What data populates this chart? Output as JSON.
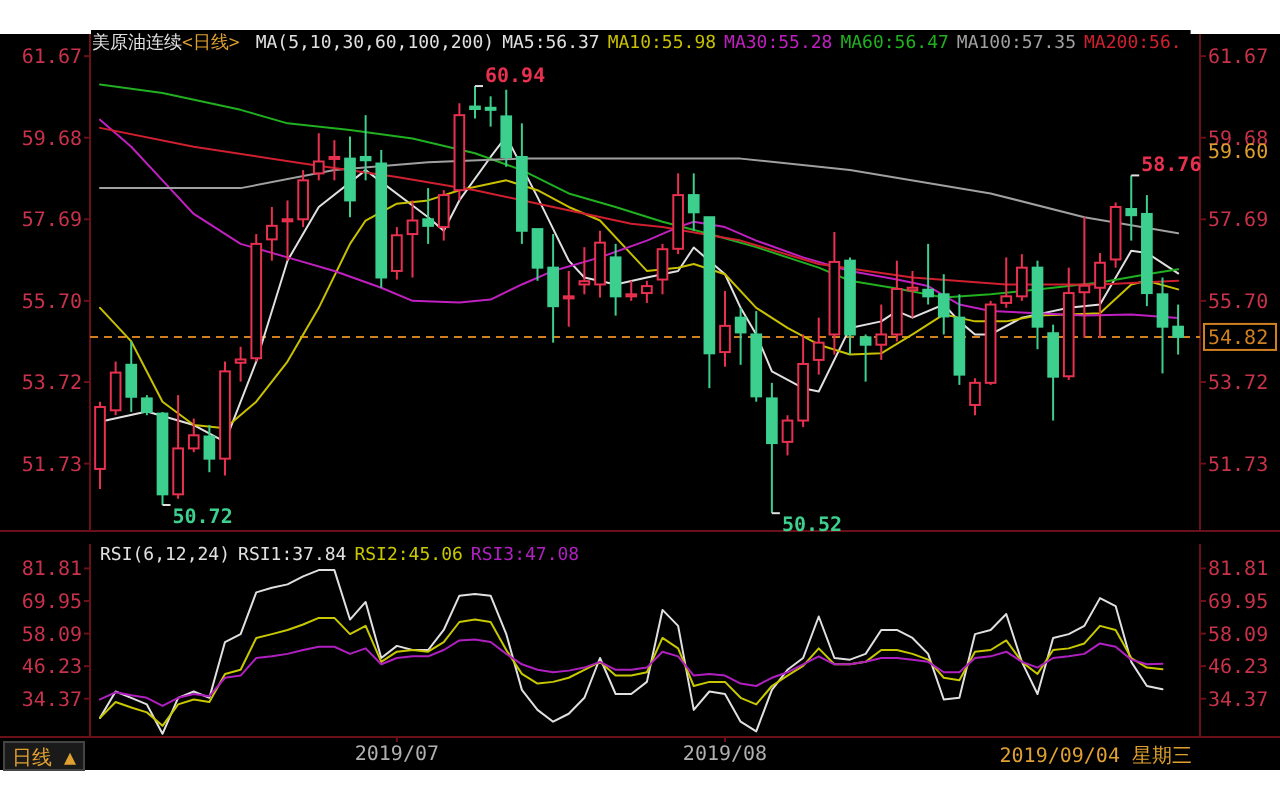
{
  "chart_data": [
    {
      "type": "candlestick",
      "title": "美原油连续",
      "subtitle": "<日线>",
      "legend_title": "MA(5,10,30,60,100,200)",
      "legend": "top right",
      "tick_labels": "y",
      "categories": [
        null,
        null,
        null,
        null,
        null,
        null,
        null,
        null,
        null,
        null,
        null,
        null,
        null,
        null,
        null,
        null,
        null,
        null,
        null,
        null,
        null,
        null,
        null,
        null,
        null,
        null,
        null,
        null,
        null,
        null,
        null,
        null,
        null,
        null,
        null,
        null,
        null,
        null,
        null,
        null,
        null,
        null,
        null,
        null,
        null,
        null,
        null,
        null,
        null,
        null,
        null,
        null,
        null,
        null,
        null,
        null,
        null,
        null,
        null,
        null,
        null,
        null,
        null,
        null,
        null,
        null,
        null,
        null,
        null,
        null
      ],
      "ylim": [
        50.11,
        62.21
      ],
      "yticks": [
        51.73,
        53.72,
        {
          "value": 55.7,
          "label": "55.70"
        },
        57.69,
        59.68,
        61.67
      ],
      "y2lim": [
        50.11,
        62.21
      ],
      "y2ticks": [
        51.73,
        53.72,
        {
          "value": 55.7,
          "label": "55.70"
        },
        57.69,
        59.68,
        61.67
      ],
      "ohlc": [
        [
          51.6,
          53.24,
          51.11,
          53.11
        ],
        [
          53.03,
          54.22,
          52.91,
          53.95
        ],
        [
          54.14,
          54.71,
          52.99,
          53.36
        ],
        [
          53.32,
          53.4,
          52.91,
          52.99
        ],
        [
          52.95,
          52.99,
          50.72,
          50.98
        ],
        [
          50.98,
          53.4,
          50.87,
          52.1
        ],
        [
          52.1,
          52.83,
          52.01,
          52.42
        ],
        [
          52.39,
          52.67,
          51.52,
          51.85
        ],
        [
          51.85,
          54.22,
          51.44,
          53.98
        ],
        [
          54.19,
          54.58,
          53.73,
          54.27
        ],
        [
          54.3,
          57.33,
          54.22,
          57.09
        ],
        [
          57.2,
          57.99,
          56.68,
          57.53
        ],
        [
          57.64,
          58.15,
          56.68,
          57.69
        ],
        [
          57.69,
          58.89,
          57.5,
          58.64
        ],
        [
          58.81,
          59.79,
          58.64,
          59.1
        ],
        [
          59.17,
          59.62,
          58.64,
          59.21
        ],
        [
          59.17,
          59.71,
          57.74,
          58.15
        ],
        [
          59.21,
          60.23,
          58.64,
          59.13
        ],
        [
          59.05,
          59.38,
          56.02,
          56.27
        ],
        [
          56.43,
          57.5,
          56.22,
          57.3
        ],
        [
          57.33,
          58.15,
          56.27,
          57.66
        ],
        [
          57.69,
          58.45,
          57.09,
          57.53
        ],
        [
          57.5,
          58.4,
          57.17,
          58.28
        ],
        [
          58.4,
          60.52,
          58.15,
          60.23
        ],
        [
          60.44,
          60.94,
          60.15,
          60.38
        ],
        [
          60.41,
          60.69,
          59.95,
          60.36
        ],
        [
          60.2,
          60.85,
          58.97,
          59.21
        ],
        [
          59.21,
          60.03,
          57.09,
          57.41
        ],
        [
          57.45,
          57.45,
          56.19,
          56.51
        ],
        [
          56.51,
          57.33,
          54.68,
          55.57
        ],
        [
          55.76,
          56.43,
          55.07,
          55.81
        ],
        [
          56.1,
          57.01,
          55.86,
          56.18
        ],
        [
          56.1,
          57.41,
          55.78,
          57.12
        ],
        [
          56.76,
          57.09,
          55.34,
          55.81
        ],
        [
          55.81,
          56.19,
          55.7,
          55.86
        ],
        [
          55.89,
          56.19,
          55.65,
          56.06
        ],
        [
          56.22,
          57.09,
          55.86,
          56.96
        ],
        [
          56.97,
          58.81,
          56.84,
          58.28
        ],
        [
          58.28,
          58.81,
          57.41,
          57.86
        ],
        [
          57.74,
          57.74,
          53.57,
          54.42
        ],
        [
          54.45,
          55.94,
          54.09,
          55.09
        ],
        [
          55.29,
          55.53,
          54.14,
          54.93
        ],
        [
          54.88,
          55.45,
          53.24,
          53.37
        ],
        [
          53.32,
          53.7,
          50.52,
          52.23
        ],
        [
          52.26,
          52.91,
          51.93,
          52.78
        ],
        [
          52.78,
          54.88,
          52.62,
          54.16
        ],
        [
          54.26,
          55.29,
          53.9,
          54.68
        ],
        [
          54.88,
          57.38,
          54.39,
          56.65
        ],
        [
          56.68,
          56.76,
          54.39,
          54.88
        ],
        [
          54.81,
          54.88,
          53.73,
          54.63
        ],
        [
          54.63,
          55.61,
          54.26,
          54.88
        ],
        [
          54.88,
          56.68,
          54.71,
          55.99
        ],
        [
          55.96,
          56.43,
          55.29,
          56.02
        ],
        [
          55.97,
          57.09,
          55.61,
          55.81
        ],
        [
          55.86,
          56.35,
          54.88,
          55.32
        ],
        [
          55.29,
          55.86,
          53.65,
          53.9
        ],
        [
          53.16,
          53.81,
          52.91,
          53.7
        ],
        [
          53.7,
          55.7,
          53.65,
          55.61
        ],
        [
          55.65,
          56.76,
          55.53,
          55.81
        ],
        [
          55.81,
          56.84,
          55.7,
          56.51
        ],
        [
          56.51,
          56.68,
          54.52,
          55.07
        ],
        [
          54.91,
          55.12,
          52.78,
          53.85
        ],
        [
          53.86,
          56.51,
          53.77,
          55.89
        ],
        [
          55.91,
          57.74,
          54.8,
          56.07
        ],
        [
          56.02,
          56.87,
          54.8,
          56.63
        ],
        [
          56.71,
          58.1,
          56.51,
          57.99
        ],
        [
          57.94,
          58.76,
          57.17,
          57.79
        ],
        [
          57.82,
          58.28,
          55.57,
          55.89
        ],
        [
          55.86,
          56.27,
          53.93,
          55.07
        ],
        [
          55.07,
          55.61,
          54.39,
          54.82
        ]
      ],
      "colors": [
        "#e8304f",
        "#e8304f",
        "#3ccf8e",
        "#3ccf8e",
        "#3ccf8e",
        "#e8304f",
        "#e8304f",
        "#3ccf8e",
        "#e8304f",
        "#e8304f",
        "#e8304f",
        "#e8304f",
        "#e8304f",
        "#e8304f",
        "#e8304f",
        "#e8304f",
        "#3ccf8e",
        "#3ccf8e",
        "#3ccf8e",
        "#e8304f",
        "#e8304f",
        "#3ccf8e",
        "#e8304f",
        "#e8304f",
        "#3ccf8e",
        "#3ccf8e",
        "#3ccf8e",
        "#3ccf8e",
        "#3ccf8e",
        "#3ccf8e",
        "#e8304f",
        "#e8304f",
        "#e8304f",
        "#3ccf8e",
        "#e8304f",
        "#e8304f",
        "#e8304f",
        "#e8304f",
        "#3ccf8e",
        "#3ccf8e",
        "#e8304f",
        "#3ccf8e",
        "#3ccf8e",
        "#3ccf8e",
        "#e8304f",
        "#e8304f",
        "#e8304f",
        "#e8304f",
        "#3ccf8e",
        "#3ccf8e",
        "#e8304f",
        "#e8304f",
        "#e8304f",
        "#3ccf8e",
        "#3ccf8e",
        "#3ccf8e",
        "#e8304f",
        "#e8304f",
        "#e8304f",
        "#e8304f",
        "#3ccf8e",
        "#3ccf8e",
        "#e8304f",
        "#e8304f",
        "#e8304f",
        "#e8304f",
        "#3ccf8e",
        "#3ccf8e",
        "#3ccf8e",
        "#3ccf8e"
      ],
      "series": [
        {
          "name": "MA5:56.37",
          "type": "line",
          "color": "#e0e0e0",
          "values": [
            52.75,
            null,
            null,
            53.0,
            null,
            null,
            52.67,
            null,
            52.26,
            null,
            54.22,
            null,
            56.68,
            null,
            57.99,
            null,
            null,
            58.89,
            null,
            null,
            null,
            57.74,
            57.41,
            58.15,
            null,
            59.21,
            59.71,
            null,
            58.23,
            null,
            56.68,
            56.27,
            null,
            56.1,
            null,
            56.27,
            null,
            56.43,
            57.0,
            null,
            56.35,
            55.53,
            54.88,
            53.98,
            null,
            53.57,
            53.49,
            null,
            55.04,
            null,
            55.2,
            55.45,
            55.29,
            null,
            55.61,
            55.2,
            54.88,
            54.88,
            null,
            55.29,
            55.37,
            null,
            55.53,
            null,
            55.61,
            null,
            56.92,
            56.87,
            null,
            56.37
          ]
        },
        {
          "name": "MA10:55.98",
          "type": "line",
          "color": "#c8c000",
          "values": [
            55.53,
            null,
            54.71,
            null,
            53.24,
            null,
            52.67,
            null,
            52.59,
            null,
            53.24,
            null,
            54.22,
            null,
            55.53,
            null,
            57.09,
            57.66,
            null,
            58.07,
            null,
            58.15,
            null,
            58.4,
            null,
            null,
            58.64,
            null,
            58.4,
            null,
            57.99,
            null,
            57.66,
            null,
            56.84,
            56.43,
            null,
            56.51,
            56.6,
            null,
            56.35,
            null,
            55.53,
            null,
            55.04,
            null,
            54.63,
            null,
            54.39,
            null,
            54.42,
            null,
            54.88,
            null,
            55.37,
            null,
            55.2,
            null,
            55.2,
            null,
            55.34,
            null,
            55.37,
            null,
            55.4,
            null,
            56.1,
            56.19,
            null,
            55.98
          ]
        },
        {
          "name": "MA30:55.28",
          "type": "line",
          "color": "#c020c0",
          "values": [
            60.12,
            null,
            59.46,
            null,
            58.64,
            null,
            57.82,
            null,
            null,
            57.09,
            null,
            null,
            56.76,
            null,
            null,
            56.43,
            null,
            null,
            56.02,
            null,
            55.7,
            null,
            null,
            55.66,
            null,
            55.73,
            null,
            56.1,
            null,
            56.43,
            null,
            null,
            56.76,
            null,
            null,
            57.17,
            null,
            57.5,
            57.63,
            null,
            57.5,
            null,
            57.17,
            null,
            null,
            56.76,
            null,
            null,
            56.43,
            null,
            null,
            56.22,
            null,
            56.06,
            null,
            55.61,
            null,
            55.45,
            null,
            null,
            55.4,
            null,
            null,
            55.34,
            null,
            null,
            55.37,
            null,
            null,
            55.28
          ]
        },
        {
          "name": "MA60:56.47",
          "type": "line",
          "color": "#20b020",
          "values": [
            60.98,
            null,
            null,
            null,
            60.77,
            null,
            null,
            null,
            null,
            60.36,
            null,
            null,
            60.03,
            null,
            null,
            null,
            59.87,
            null,
            null,
            null,
            59.66,
            null,
            null,
            null,
            59.3,
            null,
            null,
            58.89,
            null,
            null,
            58.32,
            null,
            null,
            57.99,
            null,
            null,
            57.63,
            null,
            null,
            57.33,
            null,
            null,
            57.01,
            null,
            null,
            null,
            56.51,
            null,
            56.19,
            null,
            null,
            56.0,
            null,
            null,
            55.78,
            null,
            null,
            55.86,
            null,
            null,
            null,
            56.02,
            null,
            null,
            56.15,
            null,
            null,
            56.35,
            null,
            56.47
          ]
        },
        {
          "name": "MA100:57.35",
          "type": "line",
          "color": "#a0a0a0",
          "values": [
            58.45,
            null,
            null,
            null,
            null,
            null,
            null,
            null,
            null,
            58.45,
            null,
            null,
            null,
            null,
            null,
            58.89,
            null,
            null,
            null,
            null,
            null,
            59.08,
            null,
            null,
            null,
            null,
            null,
            59.17,
            null,
            null,
            null,
            null,
            null,
            null,
            null,
            null,
            59.17,
            null,
            null,
            null,
            null,
            59.17,
            null,
            null,
            null,
            null,
            null,
            null,
            58.89,
            null,
            null,
            null,
            null,
            null,
            null,
            null,
            null,
            58.32,
            null,
            null,
            null,
            null,
            null,
            57.74,
            null,
            null,
            null,
            null,
            null,
            57.35
          ]
        },
        {
          "name": "MA200:56.",
          "type": "line",
          "color": "#d02030",
          "values": [
            59.92,
            null,
            null,
            null,
            null,
            null,
            59.46,
            null,
            null,
            null,
            null,
            null,
            null,
            59.05,
            null,
            null,
            null,
            null,
            null,
            58.72,
            null,
            null,
            null,
            null,
            58.4,
            null,
            null,
            null,
            null,
            57.99,
            null,
            null,
            null,
            null,
            57.58,
            null,
            57.5,
            null,
            null,
            null,
            null,
            57.17,
            null,
            null,
            null,
            null,
            56.6,
            null,
            null,
            null,
            null,
            null,
            56.27,
            null,
            null,
            null,
            null,
            null,
            56.1,
            null,
            null,
            null,
            null,
            null,
            56.1,
            null,
            null,
            null,
            null,
            56.19
          ]
        }
      ],
      "ref_lines": [
        {
          "axis": "y",
          "value": 54.82,
          "label": "54.82",
          "color": "#d08020",
          "line_style": "dashed"
        }
      ],
      "annotations": [
        "60.94",
        "58.76",
        "50.72",
        "50.52",
        "59.60"
      ]
    },
    {
      "type": "line",
      "legend_title": "RSI(6,12,24)",
      "legend": "top left",
      "categories": [
        null,
        null,
        null,
        null,
        null,
        null,
        null,
        null,
        null,
        null,
        null,
        null,
        null,
        null,
        null,
        null,
        null,
        null,
        null,
        "2019/07",
        null,
        null,
        null,
        null,
        null,
        null,
        null,
        null,
        null,
        null,
        null,
        null,
        null,
        null,
        null,
        null,
        null,
        null,
        null,
        null,
        "2019/08",
        null,
        null,
        null,
        null,
        null,
        null,
        null,
        null,
        null,
        null,
        null,
        null,
        null,
        null,
        null,
        null,
        null,
        null,
        null,
        null,
        null,
        null,
        null,
        null,
        null,
        null,
        null,
        null,
        null
      ],
      "ylim": [
        20.8,
        90.7
      ],
      "yticks": [
        81.81,
        69.95,
        58.09,
        46.23,
        34.37
      ],
      "y2lim": [
        20.8,
        90.7
      ],
      "y2ticks": [
        81.81,
        69.95,
        58.09,
        46.23,
        34.37
      ],
      "series": [
        {
          "name": "RSI1:37.84",
          "color": "#e0e0e0",
          "values": [
            27.4,
            37.0,
            34.7,
            32.3,
            21.6,
            34.7,
            37.0,
            34.7,
            55.0,
            57.9,
            73.1,
            74.8,
            76.0,
            78.9,
            81.2,
            81.2,
            63.2,
            69.6,
            49.2,
            53.6,
            52.1,
            52.1,
            59.4,
            71.9,
            72.5,
            71.9,
            57.9,
            37.6,
            30.3,
            26.0,
            28.9,
            34.7,
            49.2,
            36.1,
            36.1,
            40.5,
            66.7,
            60.9,
            30.3,
            37.0,
            36.1,
            26.0,
            22.5,
            37.6,
            44.9,
            49.2,
            64.3,
            49.2,
            48.6,
            50.7,
            59.4,
            59.4,
            56.5,
            50.7,
            34.1,
            34.7,
            57.9,
            59.4,
            65.2,
            47.8,
            36.1,
            56.5,
            57.9,
            60.9,
            71.0,
            68.1,
            47.8,
            39.0,
            37.8,
            null
          ]
        },
        {
          "name": "RSI2:45.06",
          "color": "#c8c800",
          "values": [
            27.4,
            33.2,
            31.2,
            29.4,
            24.5,
            32.3,
            34.1,
            33.2,
            43.4,
            44.9,
            56.5,
            57.9,
            59.4,
            61.4,
            63.8,
            63.8,
            57.9,
            60.9,
            47.8,
            51.5,
            52.1,
            51.5,
            55.0,
            62.3,
            63.2,
            62.3,
            52.1,
            43.4,
            39.9,
            40.5,
            42.0,
            44.9,
            47.8,
            42.8,
            42.8,
            44.0,
            56.5,
            52.7,
            39.0,
            40.5,
            40.5,
            34.7,
            32.3,
            39.0,
            42.8,
            46.3,
            52.7,
            46.9,
            46.9,
            47.8,
            52.1,
            52.1,
            50.7,
            48.6,
            42.0,
            41.1,
            51.5,
            52.1,
            55.6,
            47.8,
            43.4,
            52.1,
            52.7,
            54.5,
            60.9,
            59.4,
            49.2,
            45.7,
            45.1,
            null
          ]
        },
        {
          "name": "RSI3:47.08",
          "color": "#b020c0",
          "values": [
            34.1,
            36.7,
            35.6,
            34.7,
            31.8,
            34.7,
            36.1,
            35.3,
            42.0,
            42.8,
            49.2,
            49.8,
            50.7,
            52.1,
            53.3,
            53.3,
            50.7,
            52.7,
            46.9,
            49.2,
            49.8,
            49.8,
            52.1,
            55.6,
            55.9,
            55.0,
            50.7,
            46.9,
            44.9,
            44.0,
            44.6,
            45.7,
            47.8,
            44.9,
            44.9,
            45.7,
            51.5,
            49.8,
            42.8,
            43.4,
            42.8,
            39.9,
            39.0,
            42.0,
            44.0,
            46.9,
            49.8,
            46.9,
            46.9,
            47.8,
            49.2,
            49.2,
            48.6,
            47.8,
            44.0,
            44.0,
            49.2,
            49.8,
            51.5,
            47.8,
            45.7,
            49.2,
            49.8,
            50.7,
            54.5,
            53.3,
            48.6,
            46.9,
            47.1,
            null
          ]
        }
      ],
      "annotations": [
        "日线 ▲",
        "2019/09/04 星期三"
      ]
    }
  ]
}
